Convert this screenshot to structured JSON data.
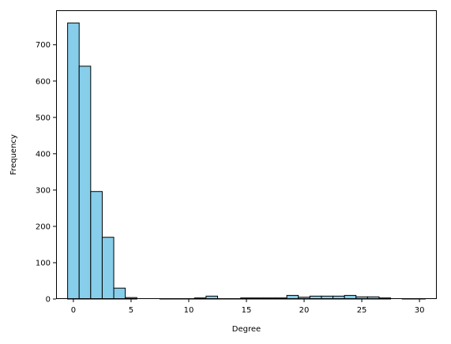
{
  "chart_data": {
    "type": "bar",
    "title": "",
    "xlabel": "Degree",
    "ylabel": "Frequency",
    "xlim": [
      -1.5,
      31.5
    ],
    "ylim": [
      0,
      795
    ],
    "xticks": [
      0,
      5,
      10,
      15,
      20,
      25,
      30
    ],
    "yticks": [
      0,
      100,
      200,
      300,
      400,
      500,
      600,
      700
    ],
    "grid": false,
    "legend": "none",
    "bar_color": "#87ceeb",
    "edge_color": "#000000",
    "bin_width": 1,
    "bins": [
      {
        "x": 0,
        "count": 760
      },
      {
        "x": 1,
        "count": 641
      },
      {
        "x": 2,
        "count": 296
      },
      {
        "x": 3,
        "count": 170
      },
      {
        "x": 4,
        "count": 30
      },
      {
        "x": 5,
        "count": 4
      },
      {
        "x": 6,
        "count": 0
      },
      {
        "x": 7,
        "count": 0
      },
      {
        "x": 8,
        "count": 1
      },
      {
        "x": 9,
        "count": 1
      },
      {
        "x": 10,
        "count": 1
      },
      {
        "x": 11,
        "count": 3
      },
      {
        "x": 12,
        "count": 8
      },
      {
        "x": 13,
        "count": 1
      },
      {
        "x": 14,
        "count": 1
      },
      {
        "x": 15,
        "count": 3
      },
      {
        "x": 16,
        "count": 3
      },
      {
        "x": 17,
        "count": 3
      },
      {
        "x": 18,
        "count": 3
      },
      {
        "x": 19,
        "count": 10
      },
      {
        "x": 20,
        "count": 5
      },
      {
        "x": 21,
        "count": 8
      },
      {
        "x": 22,
        "count": 8
      },
      {
        "x": 23,
        "count": 8
      },
      {
        "x": 24,
        "count": 10
      },
      {
        "x": 25,
        "count": 6
      },
      {
        "x": 26,
        "count": 6
      },
      {
        "x": 27,
        "count": 3
      },
      {
        "x": 28,
        "count": 0
      },
      {
        "x": 29,
        "count": 1
      },
      {
        "x": 30,
        "count": 1
      }
    ]
  }
}
